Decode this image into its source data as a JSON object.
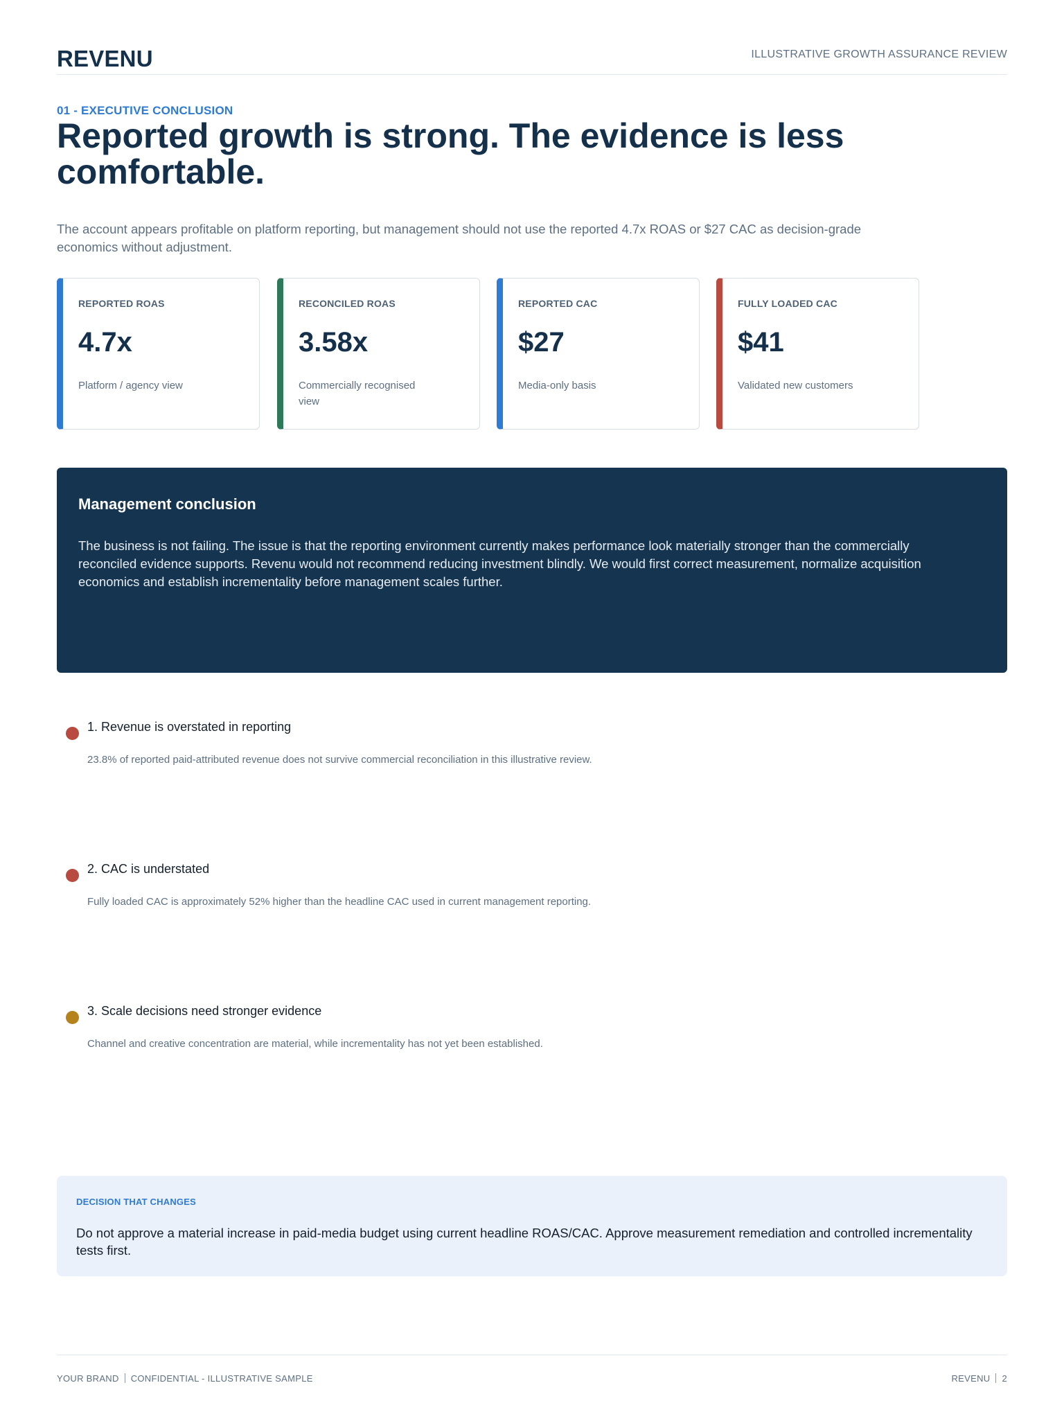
{
  "header": {
    "brand": "REVENU",
    "document_type": "ILLUSTRATIVE GROWTH ASSURANCE REVIEW"
  },
  "section": {
    "label": "01 - EXECUTIVE CONCLUSION",
    "headline": "Reported growth is strong. The evidence is less comfortable.",
    "lead": "The account appears profitable on platform reporting, but management should not use the reported 4.7x ROAS or $27 CAC as decision-grade economics without adjustment."
  },
  "kpis": [
    {
      "label": "REPORTED ROAS",
      "value": "4.7x",
      "note": "Platform / agency view",
      "accent": "#2f7bd4"
    },
    {
      "label": "RECONCILED ROAS",
      "value": "3.58x",
      "note": "Commercially recognised view",
      "accent": "#2c7a5a"
    },
    {
      "label": "REPORTED CAC",
      "value": "$27",
      "note": "Media-only basis",
      "accent": "#2f7bd4"
    },
    {
      "label": "FULLY LOADED CAC",
      "value": "$41",
      "note": "Validated new customers",
      "accent": "#b84a3f"
    }
  ],
  "conclusion": {
    "title": "Management conclusion",
    "body": "The business is not failing. The issue is that the reporting environment currently makes performance look materially stronger than the commercially reconciled evidence supports. Revenu would not recommend reducing investment blindly. We would first correct measurement, normalize acquisition economics and establish incrementality before management scales further."
  },
  "findings": [
    {
      "title": "1. Revenue is overstated in reporting",
      "description": "23.8% of reported paid-attributed revenue does not survive commercial reconciliation in this illustrative review.",
      "color": "#b84a3f"
    },
    {
      "title": "2. CAC is understated",
      "description": "Fully loaded CAC is approximately 52% higher than the headline CAC used in current management reporting.",
      "color": "#b84a3f"
    },
    {
      "title": "3. Scale decisions need stronger evidence",
      "description": "Channel and creative concentration are material, while incrementality has not yet been established.",
      "color": "#b5821c"
    }
  ],
  "decision": {
    "label": "DECISION THAT CHANGES",
    "text": "Do not approve a material increase in paid-media budget using current headline ROAS/CAC. Approve measurement remediation and controlled incrementality tests first."
  },
  "footer": {
    "left_brand": "YOUR BRAND",
    "left_note": "CONFIDENTIAL - ILLUSTRATIVE SAMPLE",
    "right_brand": "REVENU",
    "page_number": "2"
  }
}
